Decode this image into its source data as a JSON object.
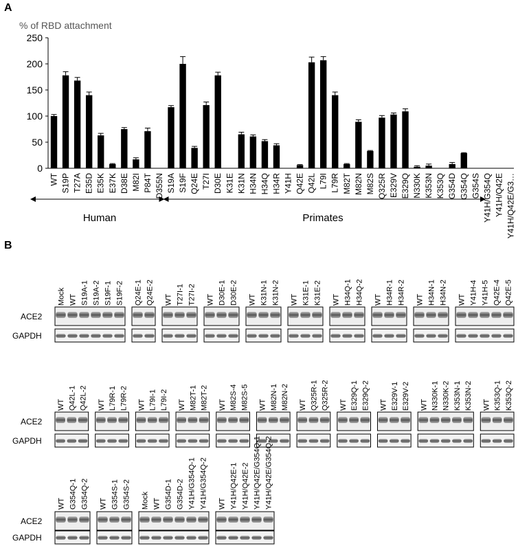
{
  "chart_data": {
    "type": "bar",
    "panel_label": "A",
    "ylabel": "% of RBD attachment",
    "categories": [
      "WT",
      "S19P",
      "T27A",
      "E35D",
      "E35K",
      "E37K",
      "D38E",
      "M82I",
      "P84T",
      "D355N",
      "S19A",
      "S19F",
      "Q24E",
      "T27I",
      "D30E",
      "K31E",
      "K31N",
      "H34N",
      "H34Q",
      "H34R",
      "Y41H",
      "Q42E",
      "Q42L",
      "L79I",
      "L79R",
      "M82T",
      "M82N",
      "M82S",
      "Q325R",
      "E329V",
      "E329Q",
      "N330K",
      "K353N",
      "K353Q",
      "G354D",
      "G354Q",
      "G354S",
      "Y41H/G354Q",
      "Y41H/Q42E",
      "Y41H/Q42E/G3…"
    ],
    "values": [
      100,
      178,
      168,
      140,
      63,
      8,
      75,
      17,
      71,
      0,
      117,
      200,
      39,
      121,
      178,
      0,
      65,
      61,
      52,
      44,
      0,
      6,
      203,
      207,
      140,
      8,
      89,
      33,
      97,
      103,
      109,
      3,
      5,
      0,
      8,
      29,
      0,
      0,
      0,
      0
    ],
    "errors": [
      3,
      7,
      6,
      6,
      4,
      1,
      3,
      3,
      6,
      0,
      3,
      14,
      3,
      6,
      6,
      0,
      4,
      3,
      3,
      3,
      0,
      1,
      10,
      7,
      6,
      1,
      4,
      1,
      4,
      3,
      5,
      2,
      3,
      0,
      3,
      1,
      0,
      0,
      0,
      0
    ],
    "color": "#000000",
    "ylim": [
      0,
      250
    ],
    "yticks": [
      0,
      50,
      100,
      150,
      200,
      250
    ],
    "annotations": [
      "Human",
      "Primates"
    ]
  },
  "blots": {
    "panel_label": "B",
    "row_labels": [
      "ACE2",
      "GAPDH"
    ],
    "rows": [
      [
        [
          "Mock",
          "WT",
          "S19A-1",
          "S19A-2",
          "S19F-1",
          "S19F-2"
        ],
        [
          "Q24E-1",
          "Q24E-2"
        ],
        [
          "WT",
          "T27I-1",
          "T27I-2"
        ],
        [
          "WT",
          "D30E-1",
          "D30E-2"
        ],
        [
          "WT",
          "K31N-1",
          "K31N-2"
        ],
        [
          "WT",
          "K31E-1",
          "K31E-2"
        ],
        [
          "WT",
          "H34Q-1",
          "H34Q-2"
        ],
        [
          "WT",
          "H34R-1",
          "H34R-2"
        ],
        [
          "WT",
          "H34N-1",
          "H34N-2"
        ],
        [
          "WT",
          "Y41H-4",
          "Y41H-5",
          "Q42E-4",
          "Q42E-5"
        ]
      ],
      [
        [
          "WT",
          "Q42L-1",
          "Q42L-2"
        ],
        [
          "WT",
          "L79R-1",
          "L79R-2"
        ],
        [
          "WT",
          "L79I-1",
          "L79I-2"
        ],
        [
          "WT",
          "M82T-1",
          "M82T-2"
        ],
        [
          "WT",
          "M82S-4",
          "M82S-5"
        ],
        [
          "WT",
          "M82N-1",
          "M82N-2"
        ],
        [
          "WT",
          "Q325R-1",
          "Q325R-2"
        ],
        [
          "WT",
          "E329Q-1",
          "E329Q-2"
        ],
        [
          "WT",
          "E329V-1",
          "E329V-2"
        ],
        [
          "WT",
          "N330K-1",
          "N330K-2",
          "K353N-1",
          "K353N-2"
        ],
        [
          "WT",
          "K353Q-1",
          "K353Q-2"
        ]
      ],
      [
        [
          "WT",
          "G354Q-1",
          "G354Q-2"
        ],
        [
          "WT",
          "G354S-1",
          "G354S-2"
        ],
        [
          "Mock",
          "WT",
          "G354D-1",
          "G354D-2",
          "Y41H/G354Q-1",
          "Y41H/G354Q-2"
        ],
        [
          "WT",
          "Y41H/Q42E-1",
          "Y41H/Q42E-2",
          "Y41H/Q42E/G354Q-1",
          "Y41H/Q42E/G354Q-2"
        ]
      ]
    ]
  }
}
